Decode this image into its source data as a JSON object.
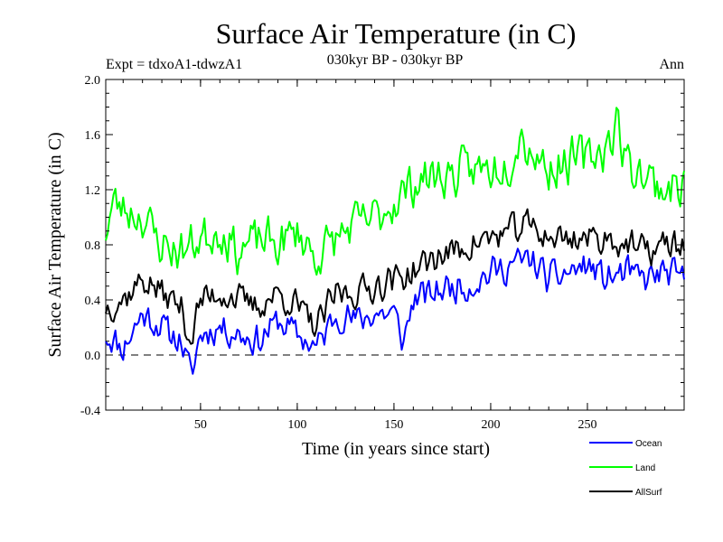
{
  "chart_data": {
    "type": "line",
    "title": "Surface Air Temperature (in C)",
    "experiment": "Expt = tdxoA1-tdwzA1",
    "period": "030kyr BP - 030kyr BP",
    "season": "Ann",
    "xlabel": "Time (in years since start)",
    "ylabel": "Surface Air Temperature (in C)",
    "xlim": [
      1,
      300
    ],
    "ylim": [
      -0.4,
      2.0
    ],
    "xticks": [
      50,
      100,
      150,
      200,
      250
    ],
    "yticks": [
      -0.4,
      0.0,
      0.4,
      0.8,
      1.2,
      1.6,
      2.0
    ],
    "ytick_labels": [
      "-0.4",
      "0.0",
      "0.4",
      "0.8",
      "1.2",
      "1.6",
      "2.0"
    ],
    "zero_line": 0.0,
    "legend_position": "bottom-right",
    "series": [
      {
        "name": "Ocean",
        "color": "#0000ff",
        "anchor_x": [
          1,
          10,
          20,
          30,
          40,
          45,
          50,
          60,
          70,
          80,
          90,
          100,
          110,
          120,
          130,
          140,
          150,
          155,
          160,
          170,
          180,
          190,
          200,
          210,
          220,
          230,
          240,
          250,
          260,
          270,
          280,
          290,
          300
        ],
        "anchor_y": [
          0.15,
          0.05,
          0.3,
          0.2,
          0.1,
          -0.15,
          0.15,
          0.2,
          0.15,
          0.1,
          0.25,
          0.15,
          0.05,
          0.3,
          0.25,
          0.3,
          0.3,
          0.1,
          0.4,
          0.45,
          0.5,
          0.5,
          0.6,
          0.65,
          0.7,
          0.55,
          0.6,
          0.65,
          0.55,
          0.6,
          0.55,
          0.6,
          0.55
        ],
        "noise": 0.12,
        "seed": 11
      },
      {
        "name": "Land",
        "color": "#00ff00",
        "anchor_x": [
          1,
          5,
          20,
          30,
          40,
          50,
          60,
          70,
          80,
          90,
          100,
          110,
          120,
          130,
          140,
          150,
          160,
          170,
          180,
          190,
          200,
          210,
          215,
          220,
          230,
          240,
          250,
          260,
          265,
          270,
          280,
          290,
          300
        ],
        "anchor_y": [
          0.9,
          1.1,
          1.0,
          0.8,
          0.75,
          0.85,
          0.9,
          0.75,
          0.85,
          0.8,
          0.9,
          0.7,
          0.85,
          0.95,
          1.0,
          1.1,
          1.25,
          1.3,
          1.3,
          1.35,
          1.35,
          1.4,
          1.6,
          1.5,
          1.35,
          1.4,
          1.45,
          1.5,
          1.7,
          1.4,
          1.3,
          1.2,
          1.25
        ],
        "noise": 0.17,
        "seed": 23
      },
      {
        "name": "AllSurf",
        "color": "#000000",
        "anchor_x": [
          1,
          10,
          20,
          30,
          40,
          45,
          50,
          60,
          70,
          80,
          90,
          100,
          110,
          120,
          130,
          140,
          150,
          160,
          170,
          180,
          190,
          200,
          210,
          220,
          230,
          240,
          250,
          260,
          270,
          280,
          290,
          300
        ],
        "anchor_y": [
          0.35,
          0.4,
          0.55,
          0.45,
          0.35,
          0.1,
          0.4,
          0.45,
          0.4,
          0.35,
          0.45,
          0.35,
          0.2,
          0.45,
          0.45,
          0.5,
          0.55,
          0.6,
          0.7,
          0.75,
          0.8,
          0.85,
          0.9,
          0.95,
          0.85,
          0.85,
          0.85,
          0.85,
          0.8,
          0.75,
          0.8,
          0.8
        ],
        "noise": 0.12,
        "seed": 37
      }
    ]
  }
}
